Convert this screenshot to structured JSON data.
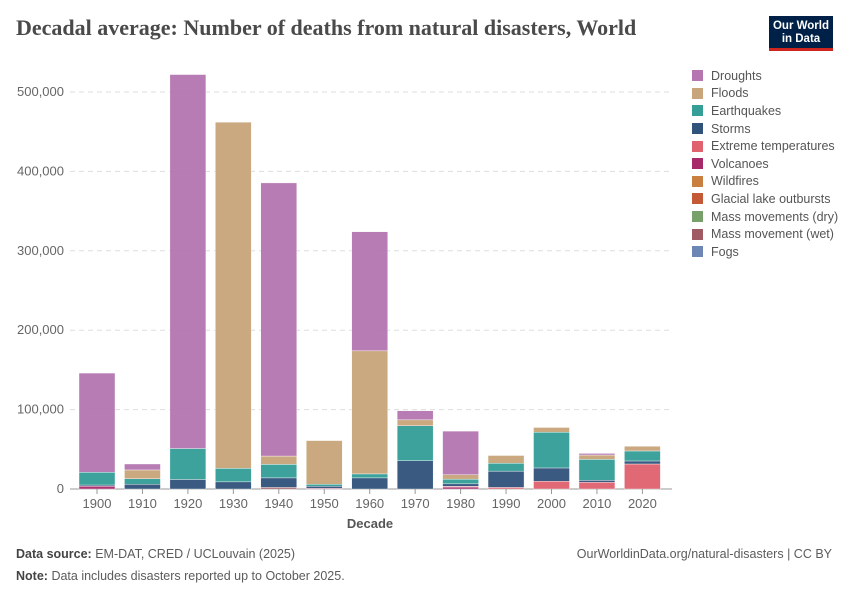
{
  "title": "Decadal average: Number of deaths from natural disasters, World",
  "logo": {
    "line1": "Our World",
    "line2": "in Data"
  },
  "footer": {
    "source_label": "Data source:",
    "source": "EM-DAT, CRED / UCLouvain (2025)",
    "url": "OurWorldinData.org/natural-disasters | CC BY",
    "note_label": "Note:",
    "note": "Data includes disasters reported up to October 2025."
  },
  "chart_data": {
    "type": "bar",
    "stacked": true,
    "title": "Decadal average: Number of deaths from natural disasters, World",
    "xlabel": "Decade",
    "ylabel": "",
    "ylim": [
      0,
      540000
    ],
    "yticks": [
      0,
      100000,
      200000,
      300000,
      400000,
      500000
    ],
    "ytick_labels": [
      "0",
      "100,000",
      "200,000",
      "300,000",
      "400,000",
      "500,000"
    ],
    "grid": "horizontal dashed",
    "legend_position": "right",
    "categories": [
      "1900",
      "1910",
      "1920",
      "1930",
      "1940",
      "1950",
      "1960",
      "1970",
      "1980",
      "1990",
      "2000",
      "2010",
      "2020"
    ],
    "series": [
      {
        "name": "Droughts",
        "color": "#b475b0",
        "values": [
          125000,
          7500,
          471000,
          0,
          344000,
          0,
          150000,
          11500,
          55000,
          0,
          0,
          2000,
          0
        ]
      },
      {
        "name": "Floods",
        "color": "#c8a57a",
        "values": [
          0,
          11000,
          0,
          436000,
          10500,
          55000,
          155000,
          7500,
          5500,
          9700,
          6000,
          5500,
          5900
        ]
      },
      {
        "name": "Earthquakes",
        "color": "#349e97",
        "values": [
          16000,
          7000,
          39000,
          17000,
          17000,
          2500,
          5000,
          44000,
          5900,
          10000,
          45000,
          26400,
          12600
        ]
      },
      {
        "name": "Storms",
        "color": "#30527b",
        "values": [
          1500,
          6000,
          12000,
          9000,
          12000,
          2500,
          14000,
          35600,
          3000,
          20500,
          16800,
          2500,
          3800
        ]
      },
      {
        "name": "Extreme temperatures",
        "color": "#e0626f",
        "values": [
          0,
          0,
          0,
          0,
          0,
          0,
          0,
          0,
          1000,
          2000,
          9700,
          8400,
          31500
        ]
      },
      {
        "name": "Volcanoes",
        "color": "#a8296a",
        "values": [
          3500,
          0,
          0,
          0,
          0,
          1000,
          0,
          0,
          2500,
          0,
          0,
          0,
          0
        ]
      },
      {
        "name": "Wildfires",
        "color": "#c97f3f",
        "values": [
          0,
          0,
          0,
          0,
          0,
          0,
          0,
          0,
          0,
          0,
          0,
          0,
          0
        ]
      },
      {
        "name": "Glacial lake outbursts",
        "color": "#c45a35",
        "values": [
          0,
          0,
          0,
          0,
          0,
          0,
          0,
          0,
          0,
          0,
          0,
          0,
          0
        ]
      },
      {
        "name": "Mass movements (dry)",
        "color": "#78a06a",
        "values": [
          0,
          0,
          0,
          0,
          0,
          0,
          0,
          0,
          0,
          0,
          0,
          0,
          0
        ]
      },
      {
        "name": "Mass movement (wet)",
        "color": "#a05a64",
        "values": [
          0,
          0,
          0,
          0,
          2000,
          0,
          0,
          0,
          0,
          0,
          0,
          0,
          0
        ]
      },
      {
        "name": "Fogs",
        "color": "#6d86b4",
        "values": [
          0,
          0,
          0,
          0,
          0,
          0,
          0,
          0,
          0,
          0,
          0,
          0,
          0
        ]
      }
    ]
  }
}
